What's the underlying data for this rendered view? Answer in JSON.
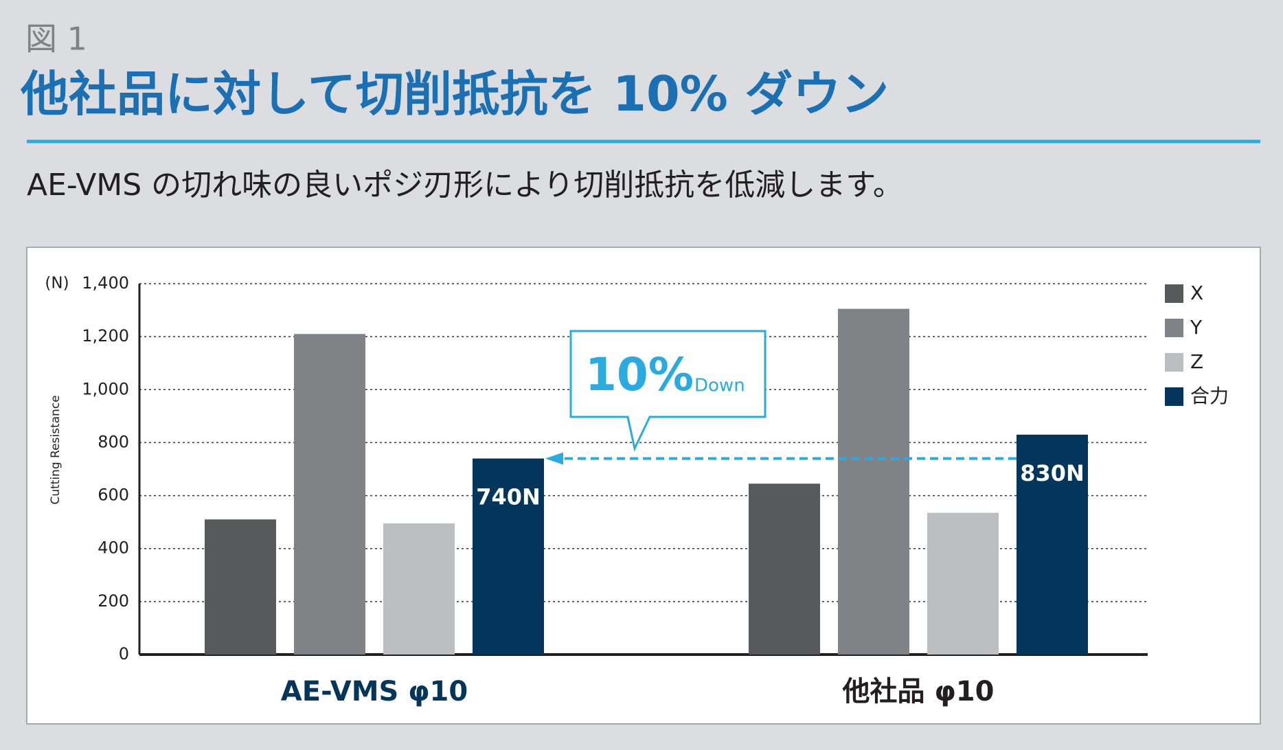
{
  "figure_label": "図 1",
  "title": "他社品に対して切削抵抗を 10% ダウン",
  "subtitle": "AE-VMS の切れ味の良いポジ刃形により切削抵抗を低減します。",
  "chart_data": {
    "type": "bar",
    "unit_label": "(N)",
    "y_label": "Cutting Resistance",
    "categories": [
      "AE-VMS φ10",
      "他社品 φ10"
    ],
    "series": [
      {
        "name": "X",
        "color": "#58595b",
        "values": [
          510,
          645
        ]
      },
      {
        "name": "Y",
        "color": "#808285",
        "values": [
          1210,
          1305
        ]
      },
      {
        "name": "Z",
        "color": "#bcbec0",
        "values": [
          495,
          535
        ]
      },
      {
        "name": "合力",
        "color": "#04355b",
        "values": [
          740,
          830
        ],
        "value_labels": [
          "740N",
          "830N"
        ]
      }
    ],
    "ylim": [
      0,
      1400
    ],
    "yticks": [
      0,
      200,
      400,
      600,
      800,
      {
        "value": 1000,
        "label": "1,000"
      },
      {
        "value": 1200,
        "label": "1,200"
      },
      {
        "value": 1400,
        "label": "1,400"
      }
    ],
    "grid": true,
    "legend": "top-right",
    "annotation": {
      "value": "10%",
      "text": "Down"
    }
  }
}
